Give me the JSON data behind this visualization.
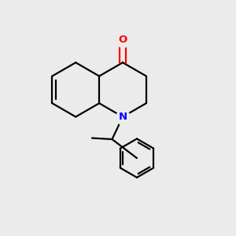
{
  "bg_color": "#ebebeb",
  "bond_color": "#000000",
  "N_color": "#0000ff",
  "O_color": "#ff0000",
  "bond_width": 1.6,
  "figsize": [
    3.0,
    3.0
  ],
  "dpi": 100,
  "ring_r": 0.115,
  "rc": [
    0.52,
    0.62
  ],
  "ph_r": 0.082
}
